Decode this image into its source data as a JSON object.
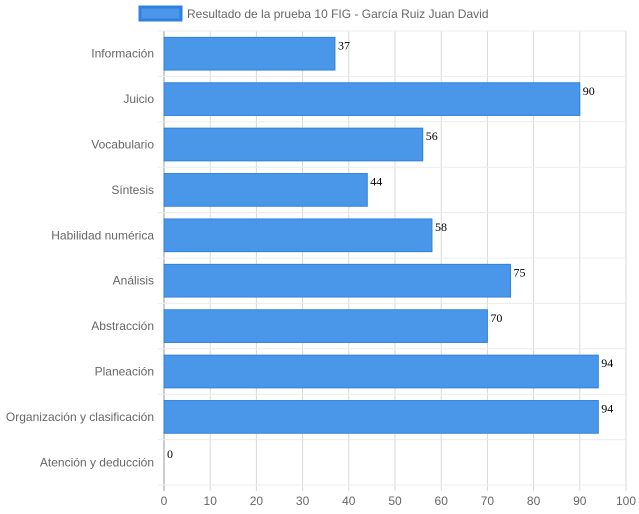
{
  "chart_data": {
    "type": "bar",
    "orientation": "horizontal",
    "categories": [
      "Información",
      "Juicio",
      "Vocabulario",
      "Síntesis",
      "Habilidad numérica",
      "Análisis",
      "Abstracción",
      "Planeación",
      "Organización y clasificación",
      "Atención y deducción"
    ],
    "series": [
      {
        "name": "Resultado de la prueba 10 FIG - García Ruiz Juan David",
        "values": [
          37,
          90,
          56,
          44,
          58,
          75,
          70,
          94,
          94,
          0
        ],
        "color": "#4a97ea",
        "border_color": "#2f80e0"
      }
    ],
    "xlim": [
      0,
      100
    ],
    "x_ticks": [
      0,
      10,
      20,
      30,
      40,
      50,
      60,
      70,
      80,
      90,
      100
    ],
    "grid": true,
    "legend_position": "top",
    "data_labels": true
  }
}
